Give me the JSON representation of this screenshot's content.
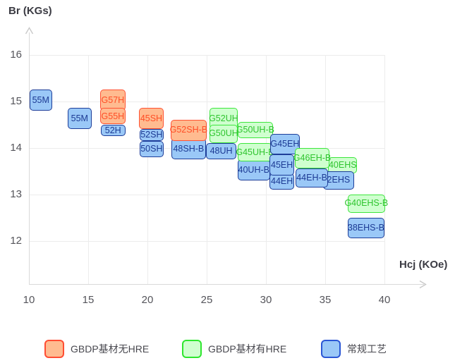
{
  "chart_data": {
    "type": "scatter",
    "variant": "labeled-range-boxes",
    "title": "",
    "xlabel": "Hcj (KOe)",
    "ylabel": "Br (KGs)",
    "x_ticks": [
      10,
      15,
      20,
      25,
      30,
      35,
      40
    ],
    "y_ticks": [
      16,
      15,
      14,
      13,
      12
    ],
    "xlim": [
      10,
      43.3
    ],
    "ylim": [
      11.1,
      16.5
    ],
    "grid": true,
    "legend_position": "bottom",
    "series": [
      {
        "key": "gbdp_no_hre",
        "label": "GBDP基材无HRE",
        "fill": "#FFBB90",
        "border": "#FF5233",
        "text": "#FF4E26",
        "swatch_border": "#FF4D33"
      },
      {
        "key": "gbdp_with_hre",
        "label": "GBDP基材有HRE",
        "fill": "#CFFFCF",
        "border": "#3DE63D",
        "text": "#2FC42F",
        "swatch_border": "#2EE62E"
      },
      {
        "key": "conventional",
        "label": "常规工艺",
        "fill": "#9AC8F7",
        "border": "#1D3D99",
        "text": "#1C3A94",
        "swatch_border": "#2B57D5"
      }
    ],
    "boxes": [
      {
        "label": "55M",
        "series": "conventional",
        "hcj": [
          10.05,
          11.95
        ],
        "br": [
          14.8,
          15.25
        ],
        "z": 1
      },
      {
        "label": "55M",
        "series": "conventional",
        "hcj": [
          13.25,
          15.3
        ],
        "br": [
          14.4,
          14.85
        ],
        "z": 1
      },
      {
        "label": "G57H",
        "series": "gbdp_no_hre",
        "hcj": [
          16.0,
          18.15
        ],
        "br": [
          14.8,
          15.25
        ],
        "z": 2
      },
      {
        "label": "G55H",
        "series": "gbdp_no_hre",
        "hcj": [
          16.0,
          18.15
        ],
        "br": [
          14.5,
          14.85
        ],
        "z": 3
      },
      {
        "label": "52H",
        "series": "conventional",
        "hcj": [
          16.05,
          18.15
        ],
        "br": [
          14.25,
          14.5
        ],
        "z": 1
      },
      {
        "label": "45SH",
        "series": "gbdp_no_hre",
        "hcj": [
          19.3,
          21.35
        ],
        "br": [
          14.4,
          14.85
        ],
        "z": 3
      },
      {
        "label": "52SH",
        "series": "conventional",
        "hcj": [
          19.35,
          21.35
        ],
        "br": [
          14.15,
          14.4
        ],
        "z": 2
      },
      {
        "label": "50SH",
        "series": "conventional",
        "hcj": [
          19.35,
          21.35
        ],
        "br": [
          13.8,
          14.15
        ],
        "z": 1
      },
      {
        "label": "G52SH-B",
        "series": "gbdp_no_hre",
        "hcj": [
          21.95,
          25.0
        ],
        "br": [
          14.15,
          14.6
        ],
        "z": 2
      },
      {
        "label": "48SH-B",
        "series": "conventional",
        "hcj": [
          22.0,
          24.95
        ],
        "br": [
          13.75,
          14.2
        ],
        "z": 1
      },
      {
        "label": "G52UH",
        "series": "gbdp_with_hre",
        "hcj": [
          25.25,
          27.6
        ],
        "br": [
          14.4,
          14.85
        ],
        "z": 1
      },
      {
        "label": "G50UH",
        "series": "gbdp_with_hre",
        "hcj": [
          25.25,
          27.6
        ],
        "br": [
          14.1,
          14.5
        ],
        "z": 2
      },
      {
        "label": "48UH",
        "series": "conventional",
        "hcj": [
          24.95,
          27.5
        ],
        "br": [
          13.75,
          14.1
        ],
        "z": 3
      },
      {
        "label": "G50UH-B",
        "series": "gbdp_with_hre",
        "hcj": [
          27.6,
          30.6
        ],
        "br": [
          14.2,
          14.55
        ],
        "z": 1
      },
      {
        "label": "G45UH-B",
        "series": "gbdp_with_hre",
        "hcj": [
          27.6,
          30.55
        ],
        "br": [
          13.7,
          14.1
        ],
        "z": 2
      },
      {
        "label": "40UH-B",
        "series": "conventional",
        "hcj": [
          27.6,
          30.35
        ],
        "br": [
          13.3,
          13.75
        ],
        "z": 1
      },
      {
        "label": "G45EH",
        "series": "conventional",
        "hcj": [
          30.35,
          32.85
        ],
        "br": [
          13.85,
          14.3
        ],
        "z": 4
      },
      {
        "label": "45EH",
        "series": "conventional",
        "hcj": [
          30.3,
          32.4
        ],
        "br": [
          13.4,
          13.85
        ],
        "z": 5
      },
      {
        "label": "44EH",
        "series": "conventional",
        "hcj": [
          30.3,
          32.4
        ],
        "br": [
          13.1,
          13.45
        ],
        "z": 3
      },
      {
        "label": "G46EH-B",
        "series": "gbdp_with_hre",
        "hcj": [
          32.45,
          35.35
        ],
        "br": [
          13.55,
          14.0
        ],
        "z": 7
      },
      {
        "label": "44EH-B",
        "series": "conventional",
        "hcj": [
          32.5,
          35.25
        ],
        "br": [
          13.15,
          13.55
        ],
        "z": 6
      },
      {
        "label": "40EHS",
        "series": "gbdp_with_hre",
        "hcj": [
          35.25,
          37.7
        ],
        "br": [
          13.45,
          13.8
        ],
        "z": 4
      },
      {
        "label": "2EHS",
        "series": "conventional",
        "hcj": [
          34.8,
          37.45
        ],
        "br": [
          13.1,
          13.5
        ],
        "z": 5
      },
      {
        "label": "G40EHS-B",
        "series": "gbdp_with_hre",
        "hcj": [
          36.9,
          40.05
        ],
        "br": [
          12.6,
          13.0
        ],
        "z": 1
      },
      {
        "label": "38EHS-B",
        "series": "conventional",
        "hcj": [
          36.9,
          40.0
        ],
        "br": [
          12.05,
          12.5
        ],
        "z": 1
      }
    ]
  }
}
